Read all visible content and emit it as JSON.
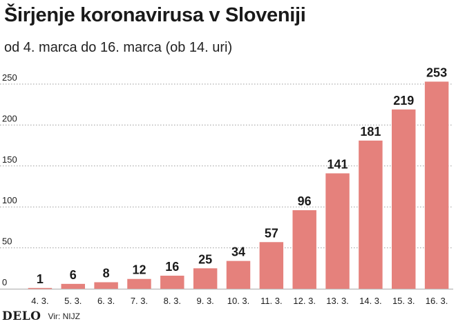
{
  "header": {
    "title": "Širjenje koronavirusa v Sloveniji",
    "subtitle": "od 4. marca do 16. marca (ob 14. uri)"
  },
  "footer": {
    "logo": "DELO",
    "source": "Vir: NIJZ"
  },
  "colors": {
    "bar": "#e5817c",
    "grid": "#9a9a9a",
    "axis": "#c0c0c0",
    "text": "#1a1a1a"
  },
  "chart_data": {
    "type": "bar",
    "categories": [
      "4. 3.",
      "5. 3.",
      "6. 3.",
      "7. 3.",
      "8. 3.",
      "9. 3.",
      "10. 3.",
      "11. 3.",
      "12. 3.",
      "13. 3.",
      "14. 3.",
      "15. 3.",
      "16. 3."
    ],
    "values": [
      1,
      6,
      8,
      12,
      16,
      25,
      34,
      57,
      96,
      141,
      181,
      219,
      253
    ],
    "title": "Širjenje koronavirusa v Sloveniji",
    "subtitle": "od 4. marca do 16. marca (ob 14. uri)",
    "xlabel": "",
    "ylabel": "",
    "ylim": [
      0,
      250
    ],
    "yticks": [
      0,
      50,
      100,
      150,
      200,
      250
    ],
    "grid": true,
    "legend": "none"
  }
}
